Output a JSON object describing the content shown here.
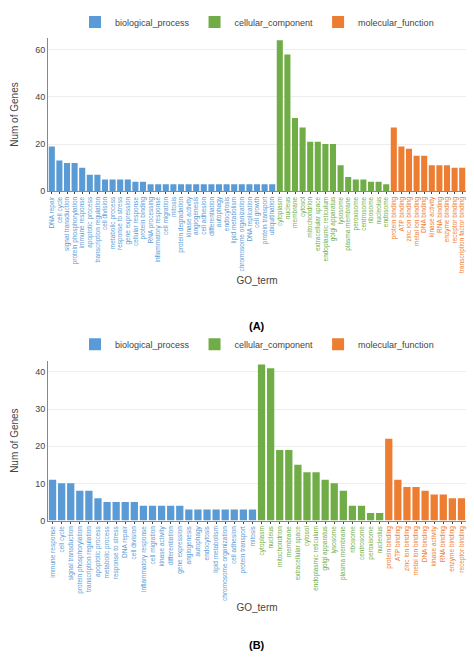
{
  "chart_data": [
    {
      "type": "bar",
      "x_label": "GO_term",
      "y_label": "Num of Genes",
      "annotations": [
        "(A)"
      ],
      "categories": [
        "DNA repair",
        "cell cycle",
        "signal transduction",
        "protein phosphorylation",
        "immune response",
        "apoptotic process",
        "transcription regulation",
        "cell division",
        "metabolic process",
        "response to stress",
        "gene expression",
        "cellular response",
        "protein binding",
        "RNA processing",
        "inflammatory response",
        "cell migration",
        "mitosis",
        "protein degradation",
        "kinase activity",
        "angiogenesis",
        "cell adhesion",
        "differentiation",
        "autophagy",
        "endocytosis",
        "lipid metabolism",
        "chromosome organization",
        "DNA replication",
        "cell growth",
        "protein transport",
        "ubiquitination",
        "cytoplasm",
        "nucleus",
        "membrane",
        "cytosol",
        "mitochondrion",
        "extracellular space",
        "endoplasmic reticulum",
        "golgi apparatus",
        "lysosome",
        "plasma membrane",
        "peroxisome",
        "centrosome",
        "ribosome",
        "nucleolus",
        "endosome",
        "protein binding",
        "ATP binding",
        "zinc ion binding",
        "metal ion binding",
        "DNA binding",
        "kinase activity",
        "RNA binding",
        "enzyme binding",
        "receptor binding",
        "transcription factor binding"
      ],
      "series": [
        {
          "name": "biological_process",
          "color": "#5B9BD5",
          "values": [
            19,
            13,
            12,
            12,
            10,
            7,
            7,
            5,
            5,
            5,
            5,
            4,
            4,
            3,
            3,
            3,
            3,
            3,
            3,
            3,
            3,
            3,
            3,
            3,
            3,
            3,
            3,
            3,
            3,
            3,
            null,
            null,
            null,
            null,
            null,
            null,
            null,
            null,
            null,
            null,
            null,
            null,
            null,
            null,
            null,
            null,
            null,
            null,
            null,
            null,
            null,
            null,
            null,
            null,
            null
          ]
        },
        {
          "name": "cellular_component",
          "color": "#70AD47",
          "values": [
            null,
            null,
            null,
            null,
            null,
            null,
            null,
            null,
            null,
            null,
            null,
            null,
            null,
            null,
            null,
            null,
            null,
            null,
            null,
            null,
            null,
            null,
            null,
            null,
            null,
            null,
            null,
            null,
            null,
            null,
            64,
            58,
            31,
            27,
            21,
            21,
            20,
            20,
            11,
            6,
            5,
            5,
            4,
            4,
            3,
            null,
            null,
            null,
            null,
            null,
            null,
            null,
            null,
            null,
            null
          ]
        },
        {
          "name": "molecular_function",
          "color": "#ED7D31",
          "values": [
            null,
            null,
            null,
            null,
            null,
            null,
            null,
            null,
            null,
            null,
            null,
            null,
            null,
            null,
            null,
            null,
            null,
            null,
            null,
            null,
            null,
            null,
            null,
            null,
            null,
            null,
            null,
            null,
            null,
            null,
            null,
            null,
            null,
            null,
            null,
            null,
            null,
            null,
            null,
            null,
            null,
            null,
            null,
            null,
            null,
            27,
            19,
            18,
            15,
            15,
            11,
            11,
            11,
            10,
            10
          ]
        }
      ],
      "ylim": [
        0,
        65
      ],
      "yticks": [
        0,
        20,
        40,
        60
      ],
      "grid": true,
      "legend": "top"
    },
    {
      "type": "bar",
      "x_label": "GO_term",
      "y_label": "Num of Genes",
      "annotations": [
        "(B)"
      ],
      "categories": [
        "immune response",
        "cell cycle",
        "signal transduction",
        "protein phosphorylation",
        "transcription regulation",
        "apoptotic process",
        "metabolic process",
        "response to stress",
        "DNA repair",
        "cell division",
        "inflammatory response",
        "cell migration",
        "kinase activity",
        "differentiation",
        "gene expression",
        "angiogenesis",
        "autophagy",
        "endocytosis",
        "lipid metabolism",
        "chromosome organization",
        "cell adhesion",
        "protein transport",
        "mitosis",
        "cytoplasm",
        "nucleus",
        "mitochondrion",
        "membrane",
        "extracellular space",
        "cytosol",
        "endoplasmic reticulum",
        "golgi apparatus",
        "lysosome",
        "plasma membrane",
        "ribosome",
        "centrosome",
        "peroxisome",
        "nucleolus",
        "protein binding",
        "ATP binding",
        "zinc ion binding",
        "metal ion binding",
        "DNA binding",
        "kinase activity",
        "RNA binding",
        "enzyme binding",
        "receptor binding"
      ],
      "series": [
        {
          "name": "biological_process",
          "color": "#5B9BD5",
          "values": [
            11,
            10,
            10,
            8,
            8,
            6,
            5,
            5,
            5,
            5,
            4,
            4,
            4,
            4,
            4,
            3,
            3,
            3,
            3,
            3,
            3,
            3,
            3,
            null,
            null,
            null,
            null,
            null,
            null,
            null,
            null,
            null,
            null,
            null,
            null,
            null,
            null,
            null,
            null,
            null,
            null,
            null,
            null,
            null,
            null,
            null
          ]
        },
        {
          "name": "cellular_component",
          "color": "#70AD47",
          "values": [
            null,
            null,
            null,
            null,
            null,
            null,
            null,
            null,
            null,
            null,
            null,
            null,
            null,
            null,
            null,
            null,
            null,
            null,
            null,
            null,
            null,
            null,
            null,
            42,
            41,
            19,
            19,
            15,
            13,
            13,
            11,
            10,
            8,
            4,
            4,
            2,
            2,
            null,
            null,
            null,
            null,
            null,
            null,
            null,
            null,
            null
          ]
        },
        {
          "name": "molecular_function",
          "color": "#ED7D31",
          "values": [
            null,
            null,
            null,
            null,
            null,
            null,
            null,
            null,
            null,
            null,
            null,
            null,
            null,
            null,
            null,
            null,
            null,
            null,
            null,
            null,
            null,
            null,
            null,
            null,
            null,
            null,
            null,
            null,
            null,
            null,
            null,
            null,
            null,
            null,
            null,
            null,
            null,
            22,
            11,
            9,
            9,
            8,
            7,
            7,
            6,
            6
          ]
        }
      ],
      "ylim": [
        0,
        43
      ],
      "yticks": [
        0,
        10,
        20,
        30,
        40
      ],
      "grid": true,
      "legend": "top"
    }
  ]
}
